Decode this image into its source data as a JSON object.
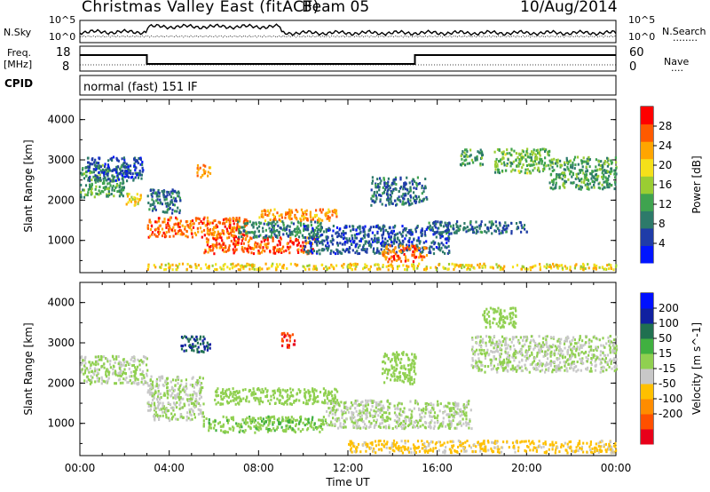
{
  "header": {
    "title": "Christmas Valley East (fitACF)",
    "beam": "Beam 05",
    "date": "10/Aug/2014"
  },
  "top_panels": {
    "nsky_label": "N.Sky",
    "nsearch_label": "N.Search",
    "nsearch_dots": "........",
    "noise_tick_high": "10^5",
    "noise_tick_low": "10^0",
    "noise_tick_high_r": "10^5",
    "noise_tick_low_r": "10^0",
    "freq_label": "Freq.",
    "freq_unit": "[MHz]",
    "freq_tick_high": "18",
    "freq_tick_low": "8",
    "nave_label": "Nave",
    "nave_dots": "....",
    "nave_tick_high": "60",
    "nave_tick_low": "0",
    "cpid_label": "CPID",
    "cpid_value": "normal (fast) 151 IF"
  },
  "axes": {
    "ylabel": "Slant Range [km]",
    "xlabel": "Time UT",
    "x_ticks": [
      "00:00",
      "04:00",
      "08:00",
      "12:00",
      "16:00",
      "20:00",
      "00:00"
    ],
    "y_ticks": [
      "1000",
      "2000",
      "3000",
      "4000"
    ]
  },
  "colors": {
    "power": [
      "#0015ff",
      "#1f3ca8",
      "#2d7a6a",
      "#3fa34f",
      "#9acd32",
      "#f5e01a",
      "#ffa500",
      "#ff5a00",
      "#ff0000"
    ],
    "velocity": [
      "#e8001a",
      "#ff5000",
      "#ff8c00",
      "#ffc000",
      "#c8c8c8",
      "#90d050",
      "#40b040",
      "#207050",
      "#1020a0",
      "#0010ff"
    ]
  },
  "chart_data": [
    {
      "type": "heatmap",
      "name": "power",
      "title": "",
      "x_range": [
        "00:00",
        "00:00"
      ],
      "ylim": [
        200,
        4500
      ],
      "ylabel": "Slant Range [km]",
      "colorbar": {
        "label": "Power [dB]",
        "ticks": [
          "4",
          "8",
          "12",
          "16",
          "20",
          "24",
          "28"
        ],
        "range": [
          0,
          32
        ]
      },
      "regions": [
        {
          "t": [
            0.0,
            2.0
          ],
          "r": [
            2100,
            2900
          ],
          "v": 12
        },
        {
          "t": [
            0.3,
            2.8
          ],
          "r": [
            2500,
            3100
          ],
          "v": 6
        },
        {
          "t": [
            2.0,
            2.8
          ],
          "r": [
            1900,
            2200
          ],
          "v": 20
        },
        {
          "t": [
            3.0,
            7.5
          ],
          "r": [
            1100,
            1600
          ],
          "v": 26
        },
        {
          "t": [
            3.0,
            4.5
          ],
          "r": [
            1700,
            2300
          ],
          "v": 8
        },
        {
          "t": [
            5.2,
            5.8
          ],
          "r": [
            2600,
            2900
          ],
          "v": 24
        },
        {
          "t": [
            5.5,
            10.5
          ],
          "r": [
            700,
            1100
          ],
          "v": 27
        },
        {
          "t": [
            8.0,
            11.5
          ],
          "r": [
            1500,
            1800
          ],
          "v": 24
        },
        {
          "t": [
            7.0,
            11.0
          ],
          "r": [
            1100,
            1500
          ],
          "v": 10
        },
        {
          "t": [
            10.0,
            16.5
          ],
          "r": [
            700,
            1400
          ],
          "v": 6
        },
        {
          "t": [
            13.5,
            15.5
          ],
          "r": [
            500,
            900
          ],
          "v": 26
        },
        {
          "t": [
            13.0,
            15.5
          ],
          "r": [
            1900,
            2600
          ],
          "v": 8
        },
        {
          "t": [
            15.5,
            20.0
          ],
          "r": [
            1200,
            1500
          ],
          "v": 8
        },
        {
          "t": [
            17.0,
            18.0
          ],
          "r": [
            2900,
            3300
          ],
          "v": 12
        },
        {
          "t": [
            18.5,
            21.0
          ],
          "r": [
            2700,
            3300
          ],
          "v": 14
        },
        {
          "t": [
            21.0,
            24.0
          ],
          "r": [
            2300,
            3100
          ],
          "v": 12
        },
        {
          "t": [
            3.0,
            24.0
          ],
          "r": [
            300,
            450
          ],
          "v": 20
        }
      ]
    },
    {
      "type": "heatmap",
      "name": "velocity",
      "title": "",
      "x_range": [
        "00:00",
        "00:00"
      ],
      "ylim": [
        200,
        4500
      ],
      "ylabel": "Slant Range [km]",
      "xlabel": "Time UT",
      "colorbar": {
        "label": "Velocity [m s^-1]",
        "ticks": [
          "200",
          "100",
          "50",
          "15",
          "-15",
          "-50",
          "-100",
          "-200"
        ],
        "range": [
          -250,
          250
        ]
      },
      "regions": [
        {
          "t": [
            0.0,
            3.0
          ],
          "r": [
            2000,
            2700
          ],
          "v": 0
        },
        {
          "t": [
            3.0,
            5.5
          ],
          "r": [
            1100,
            2200
          ],
          "v": 0
        },
        {
          "t": [
            4.5,
            5.8
          ],
          "r": [
            2800,
            3200
          ],
          "v": 150
        },
        {
          "t": [
            6.0,
            11.5
          ],
          "r": [
            1500,
            1900
          ],
          "v": 30
        },
        {
          "t": [
            5.5,
            11.0
          ],
          "r": [
            800,
            1200
          ],
          "v": 40
        },
        {
          "t": [
            11.0,
            17.5
          ],
          "r": [
            900,
            1600
          ],
          "v": 0
        },
        {
          "t": [
            12.0,
            24.0
          ],
          "r": [
            300,
            600
          ],
          "v": -60
        },
        {
          "t": [
            13.5,
            15.0
          ],
          "r": [
            2000,
            2800
          ],
          "v": 20
        },
        {
          "t": [
            17.5,
            24.0
          ],
          "r": [
            2300,
            3200
          ],
          "v": 0
        },
        {
          "t": [
            18.0,
            19.5
          ],
          "r": [
            3400,
            3900
          ],
          "v": 30
        },
        {
          "t": [
            9.0,
            9.6
          ],
          "r": [
            2900,
            3300
          ],
          "v": -200
        }
      ]
    }
  ]
}
